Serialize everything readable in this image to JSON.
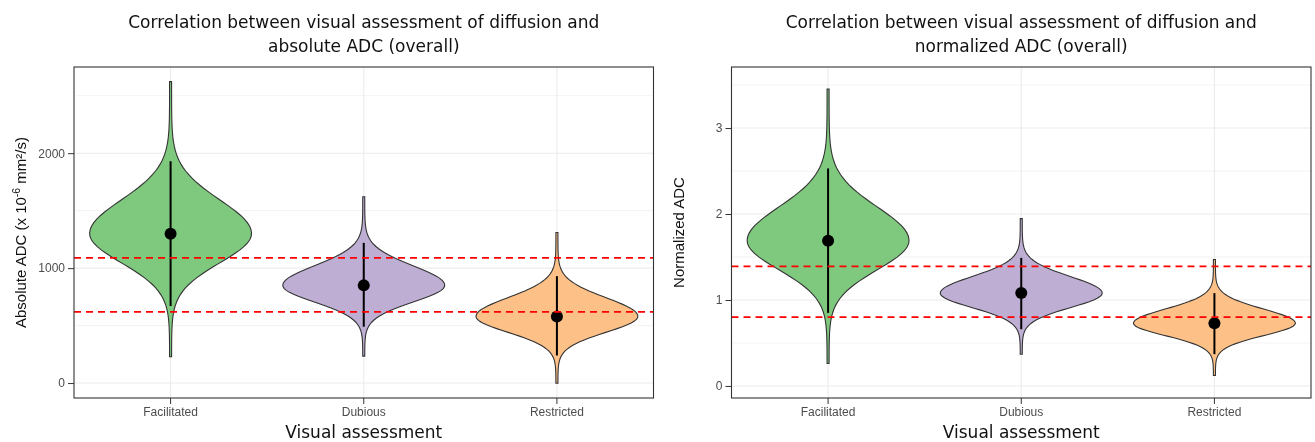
{
  "chart_data": [
    {
      "type": "scatter",
      "title": "Correlation between visual assessment of diffusion and absolute ADC (overall)",
      "xlabel": "Visual assessment",
      "ylabel": "Absolute ADC (x 10$^{-6}$ mm²/s)",
      "categories": [
        "Facilitated",
        "Dubious",
        "Restricted"
      ],
      "series": [
        {
          "color": "#000000",
          "values": [
            1300,
            850,
            580
          ],
          "errors": [
            [
              670,
              1930
            ],
            [
              490,
              1220
            ],
            [
              240,
              930
            ]
          ]
        }
      ],
      "marker": "circle",
      "ylim": [
        -130,
        2750
      ],
      "yticks": [
        0,
        {
          "value": 500,
          "label": null
        },
        1000,
        {
          "value": 1500,
          "label": null
        },
        2000,
        {
          "value": 2500,
          "label": null
        }
      ],
      "grid": true,
      "ref_lines": [
        {
          "axis": "y",
          "value": 1090,
          "color": "#ff0000",
          "line_style": "dashed"
        },
        {
          "axis": "y",
          "value": 620,
          "color": "#ff0000",
          "line_style": "dashed"
        }
      ]
    },
    {
      "type": "scatter",
      "title": "Correlation between visual assessment of diffusion and normalized ADC (overall)",
      "xlabel": "Visual assessment",
      "ylabel": "Normalized ADC",
      "categories": [
        "Facilitated",
        "Dubious",
        "Restricted"
      ],
      "series": [
        {
          "color": "#000000",
          "values": [
            1.69,
            1.08,
            0.73
          ],
          "errors": [
            [
              0.85,
              2.53
            ],
            [
              0.66,
              1.49
            ],
            [
              0.37,
              1.08
            ]
          ]
        }
      ],
      "marker": "circle",
      "ylim": [
        -0.14,
        3.71
      ],
      "yticks": [
        0,
        {
          "value": 0.5,
          "label": null
        },
        1,
        {
          "value": 1.5,
          "label": null
        },
        2,
        {
          "value": 2.5,
          "label": null
        },
        3,
        {
          "value": 3.5,
          "label": null
        }
      ],
      "grid": true,
      "ref_lines": [
        {
          "axis": "y",
          "value": 1.39,
          "color": "#ff0000",
          "line_style": "dashed"
        },
        {
          "axis": "y",
          "value": 0.8,
          "color": "#ff0000",
          "line_style": "dashed"
        }
      ]
    }
  ]
}
